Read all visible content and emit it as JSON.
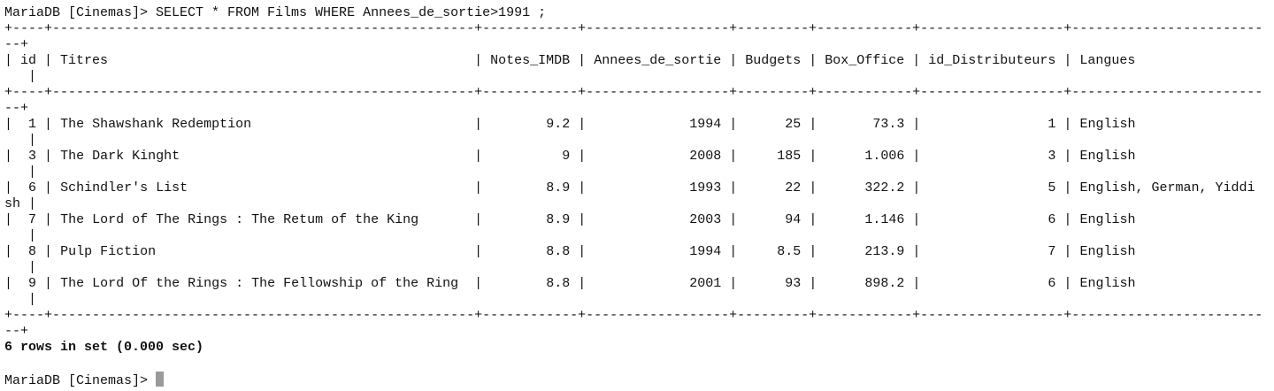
{
  "command_line": "MariaDB [Cinemas]> SELECT * FROM Films WHERE Annees_de_sortie>1991 ;",
  "table": {
    "columns": [
      "id",
      "Titres",
      "Notes_IMDB",
      "Annees_de_sortie",
      "Budgets",
      "Box_Office",
      "id_Distributeurs",
      "Langues"
    ],
    "rows": [
      [
        1,
        "The Shawshank Redemption",
        9.2,
        1994,
        25,
        73.3,
        1,
        "English"
      ],
      [
        3,
        "The Dark Kinght",
        9,
        2008,
        185,
        1.006,
        3,
        "English"
      ],
      [
        6,
        "Schindler's List",
        8.9,
        1993,
        22,
        322.2,
        5,
        "English, German, Yiddish"
      ],
      [
        7,
        "The Lord of The Rings : The Retum of the King",
        8.9,
        2003,
        94,
        1.146,
        6,
        "English"
      ],
      [
        8,
        "Pulp Fiction",
        8.8,
        1994,
        8.5,
        213.9,
        7,
        "English"
      ],
      [
        9,
        "The Lord Of the Rings : The Fellowship of the Ring",
        8.8,
        2001,
        93,
        898.2,
        6,
        "English"
      ]
    ]
  },
  "status": "6 rows in set (0.000 sec)",
  "prompt": "MariaDB [Cinemas]>"
}
